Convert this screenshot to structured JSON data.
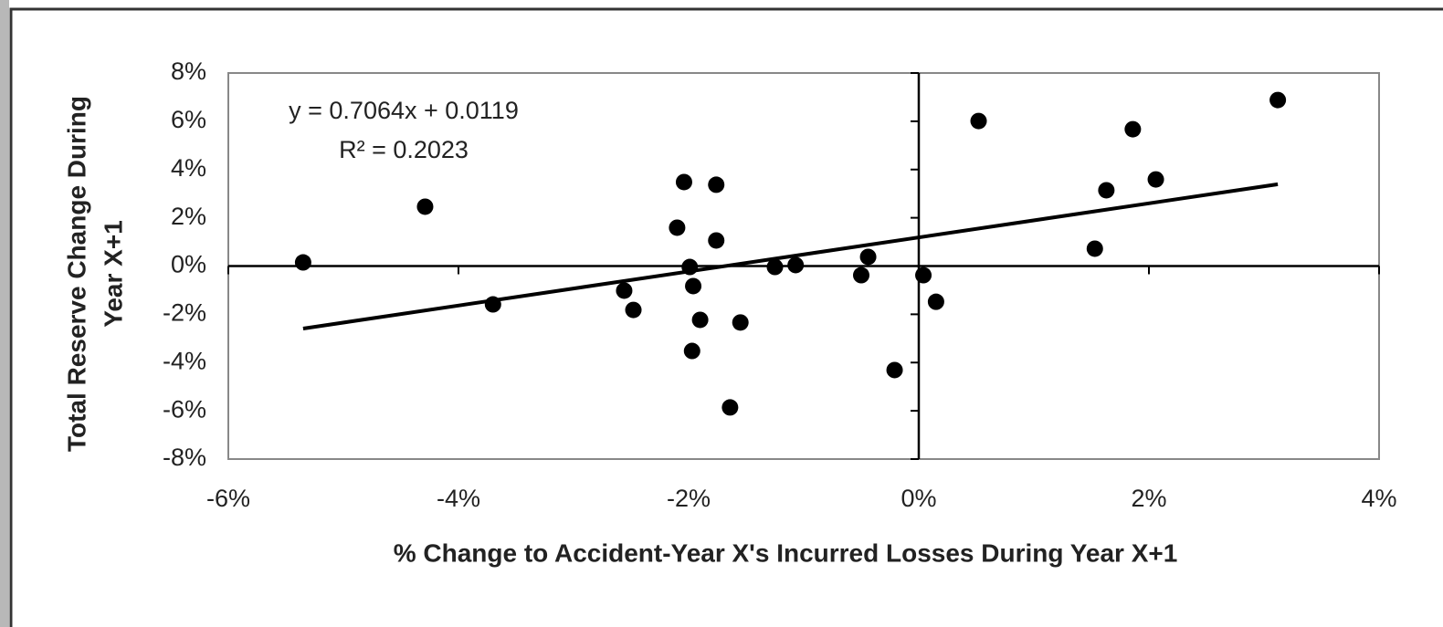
{
  "chart_data": {
    "type": "scatter",
    "x_label": "% Change to Accident-Year X's Incurred Losses During Year X+1",
    "y_label": [
      "Total Reserve Change During",
      "Year X+1"
    ],
    "annotations": [
      "y = 0.7064x + 0.0119",
      "R² = 0.2023"
    ],
    "color": "#000000",
    "x": [
      -5.35,
      -4.29,
      -3.7,
      -2.56,
      -2.48,
      -2.1,
      -2.04,
      -1.99,
      -1.96,
      -1.97,
      -1.9,
      -1.76,
      -1.76,
      -1.64,
      -1.55,
      -1.25,
      -1.07,
      -0.5,
      -0.44,
      -0.21,
      0.04,
      0.15,
      0.52,
      1.53,
      1.63,
      1.86,
      2.06,
      3.12
    ],
    "values": [
      0.15,
      2.46,
      -1.59,
      -1.02,
      -1.82,
      1.59,
      3.48,
      -0.04,
      -0.83,
      -3.52,
      -2.23,
      3.37,
      1.06,
      -5.86,
      -2.34,
      -0.04,
      0.04,
      -0.38,
      0.38,
      -4.31,
      -0.38,
      -1.48,
      6.01,
      0.72,
      3.14,
      5.67,
      3.59,
      6.88
    ],
    "trendline": {
      "x": [
        -5.35,
        3.12
      ],
      "values": [
        -2.59,
        3.39
      ]
    },
    "xlim": [
      -6,
      4
    ],
    "xticks": [
      {
        "value": -6,
        "label": "-6%"
      },
      {
        "value": -4,
        "label": "-4%"
      },
      {
        "value": -2,
        "label": "-2%"
      },
      {
        "value": 0,
        "label": "0%"
      },
      {
        "value": 2,
        "label": "2%"
      },
      {
        "value": 4,
        "label": "4%"
      }
    ],
    "ylim": [
      -8,
      8
    ],
    "yticks": [
      {
        "value": -8,
        "label": "-8%"
      },
      {
        "value": -6,
        "label": "-6%"
      },
      {
        "value": -4,
        "label": "-4%"
      },
      {
        "value": -2,
        "label": "-2%"
      },
      {
        "value": 0,
        "label": "0%"
      },
      {
        "value": 2,
        "label": "2%"
      },
      {
        "value": 4,
        "label": "4%"
      },
      {
        "value": 6,
        "label": "6%"
      },
      {
        "value": 8,
        "label": "8%"
      }
    ],
    "grid": false
  }
}
